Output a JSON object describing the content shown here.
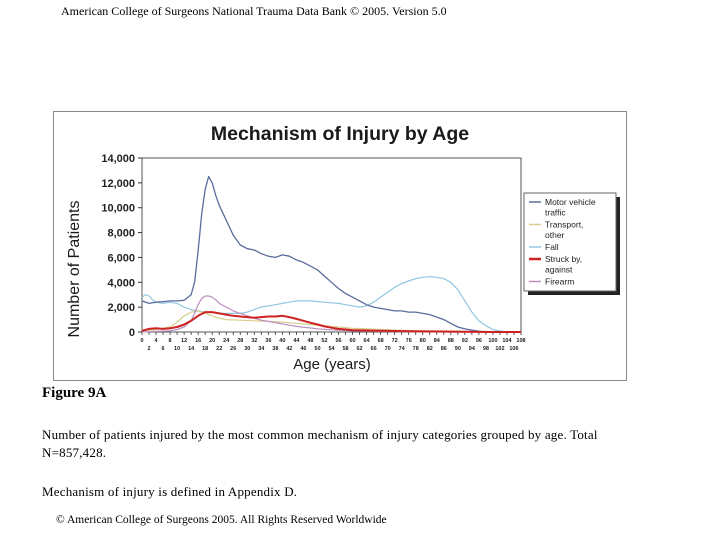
{
  "header": {
    "text": "American College of Surgeons National Trauma Data Bank © 2005. Version 5.0"
  },
  "figure": {
    "label": "Figure 9A",
    "caption_lines": [
      "Number of patients injured by the most common mechanism of injury categories grouped by age. Total N=857,428.",
      "Mechanism of injury is defined in Appendix D."
    ]
  },
  "footer": {
    "text": "© American College of Surgeons 2005. All Rights Reserved Worldwide"
  },
  "chart_data": {
    "type": "line",
    "title": "Mechanism of Injury by Age",
    "xlabel": "Age (years)",
    "ylabel": "Number of Patients",
    "xlim": [
      0,
      108
    ],
    "ylim": [
      0,
      14000
    ],
    "yticks": [
      0,
      2000,
      4000,
      6000,
      8000,
      10000,
      12000,
      14000
    ],
    "ytick_labels": [
      "0",
      "2,000",
      "4,000",
      "6,000",
      "8,000",
      "10,000",
      "12,000",
      "14,000"
    ],
    "xticks_top": [
      "0",
      "4",
      "8",
      "12",
      "16",
      "20",
      "24",
      "28",
      "32",
      "36",
      "40",
      "44",
      "48",
      "52",
      "56",
      "60",
      "64",
      "68",
      "72",
      "76",
      "80",
      "84",
      "88",
      "92",
      "96",
      "100",
      "104",
      "108"
    ],
    "xticks_bottom": [
      "2",
      "6",
      "10",
      "14",
      "18",
      "22",
      "26",
      "30",
      "34",
      "38",
      "42",
      "46",
      "50",
      "54",
      "58",
      "62",
      "66",
      "70",
      "74",
      "78",
      "82",
      "86",
      "90",
      "94",
      "98",
      "102",
      "106"
    ],
    "legend_position": "right",
    "grid": false,
    "series": [
      {
        "name": "Motor vehicle traffic",
        "color": "#5a6c9c",
        "width": 1.3,
        "x": [
          0,
          2,
          4,
          6,
          8,
          10,
          12,
          14,
          15,
          16,
          17,
          18,
          19,
          20,
          21,
          22,
          24,
          26,
          28,
          30,
          32,
          34,
          36,
          38,
          40,
          42,
          44,
          46,
          48,
          50,
          52,
          54,
          56,
          58,
          60,
          62,
          64,
          66,
          68,
          70,
          72,
          74,
          76,
          78,
          80,
          82,
          84,
          86,
          88,
          90,
          92,
          94,
          96,
          98,
          100,
          104,
          108
        ],
        "y": [
          2500,
          2300,
          2400,
          2450,
          2500,
          2500,
          2550,
          3000,
          4000,
          6500,
          9500,
          11500,
          12500,
          12000,
          11000,
          10200,
          9000,
          7800,
          7000,
          6700,
          6600,
          6300,
          6100,
          6000,
          6200,
          6100,
          5800,
          5600,
          5300,
          5000,
          4500,
          4000,
          3500,
          3100,
          2800,
          2500,
          2200,
          2000,
          1900,
          1800,
          1700,
          1700,
          1600,
          1600,
          1500,
          1400,
          1200,
          1000,
          700,
          400,
          250,
          150,
          60,
          20,
          0,
          0,
          0
        ]
      },
      {
        "name": "Transport, other",
        "color": "#d7cd8e",
        "width": 1.2,
        "x": [
          0,
          4,
          8,
          10,
          12,
          14,
          16,
          18,
          20,
          22,
          24,
          28,
          32,
          36,
          40,
          44,
          48,
          52,
          56,
          60,
          64,
          68,
          72,
          76,
          80,
          84,
          88,
          92,
          96,
          100,
          104,
          108
        ],
        "y": [
          100,
          200,
          400,
          800,
          1300,
          1600,
          1700,
          1500,
          1300,
          1100,
          1000,
          950,
          900,
          850,
          800,
          700,
          600,
          500,
          400,
          300,
          250,
          200,
          150,
          120,
          100,
          80,
          50,
          30,
          10,
          0,
          0,
          0
        ]
      },
      {
        "name": "Fall",
        "color": "#93c7e2",
        "width": 1.2,
        "x": [
          0,
          1,
          2,
          3,
          4,
          6,
          8,
          10,
          12,
          14,
          16,
          18,
          20,
          22,
          24,
          26,
          28,
          30,
          32,
          34,
          36,
          38,
          40,
          42,
          44,
          46,
          48,
          50,
          52,
          54,
          56,
          58,
          60,
          62,
          64,
          66,
          68,
          70,
          72,
          74,
          76,
          78,
          80,
          82,
          84,
          86,
          88,
          90,
          92,
          94,
          96,
          98,
          100,
          102,
          104,
          108
        ],
        "y": [
          2800,
          3000,
          2900,
          2600,
          2400,
          2300,
          2400,
          2300,
          2000,
          1800,
          1700,
          1600,
          1600,
          1500,
          1500,
          1500,
          1500,
          1600,
          1800,
          2000,
          2100,
          2200,
          2300,
          2400,
          2500,
          2500,
          2500,
          2450,
          2400,
          2350,
          2300,
          2200,
          2100,
          2000,
          2100,
          2400,
          2800,
          3200,
          3600,
          3900,
          4100,
          4300,
          4400,
          4450,
          4400,
          4300,
          4000,
          3400,
          2500,
          1600,
          900,
          500,
          200,
          80,
          20,
          0
        ]
      },
      {
        "name": "Struck by, against",
        "color": "#cc2222",
        "width": 2.0,
        "x": [
          0,
          2,
          4,
          6,
          8,
          10,
          12,
          14,
          16,
          18,
          20,
          22,
          24,
          26,
          28,
          30,
          32,
          34,
          36,
          38,
          40,
          42,
          44,
          46,
          48,
          50,
          52,
          54,
          56,
          58,
          60,
          64,
          68,
          72,
          76,
          80,
          84,
          88,
          92,
          96,
          100,
          104,
          108
        ],
        "y": [
          100,
          250,
          300,
          250,
          300,
          400,
          600,
          900,
          1300,
          1600,
          1600,
          1500,
          1400,
          1300,
          1250,
          1200,
          1150,
          1200,
          1250,
          1250,
          1300,
          1200,
          1050,
          900,
          750,
          600,
          450,
          350,
          250,
          200,
          150,
          120,
          100,
          80,
          60,
          50,
          40,
          30,
          20,
          10,
          0,
          0,
          0
        ]
      },
      {
        "name": "Firearm",
        "color": "#bd8fbf",
        "width": 1.2,
        "x": [
          0,
          4,
          8,
          10,
          12,
          14,
          15,
          16,
          17,
          18,
          19,
          20,
          21,
          22,
          24,
          26,
          28,
          30,
          32,
          34,
          36,
          38,
          40,
          42,
          44,
          46,
          48,
          50,
          54,
          58,
          62,
          66,
          70,
          74,
          80,
          86,
          92,
          100,
          108
        ],
        "y": [
          0,
          50,
          100,
          200,
          400,
          900,
          1500,
          2200,
          2700,
          2900,
          2900,
          2800,
          2600,
          2300,
          2000,
          1700,
          1500,
          1300,
          1100,
          950,
          850,
          750,
          650,
          550,
          450,
          380,
          320,
          260,
          180,
          120,
          80,
          60,
          40,
          30,
          20,
          10,
          0,
          0,
          0
        ]
      }
    ]
  }
}
